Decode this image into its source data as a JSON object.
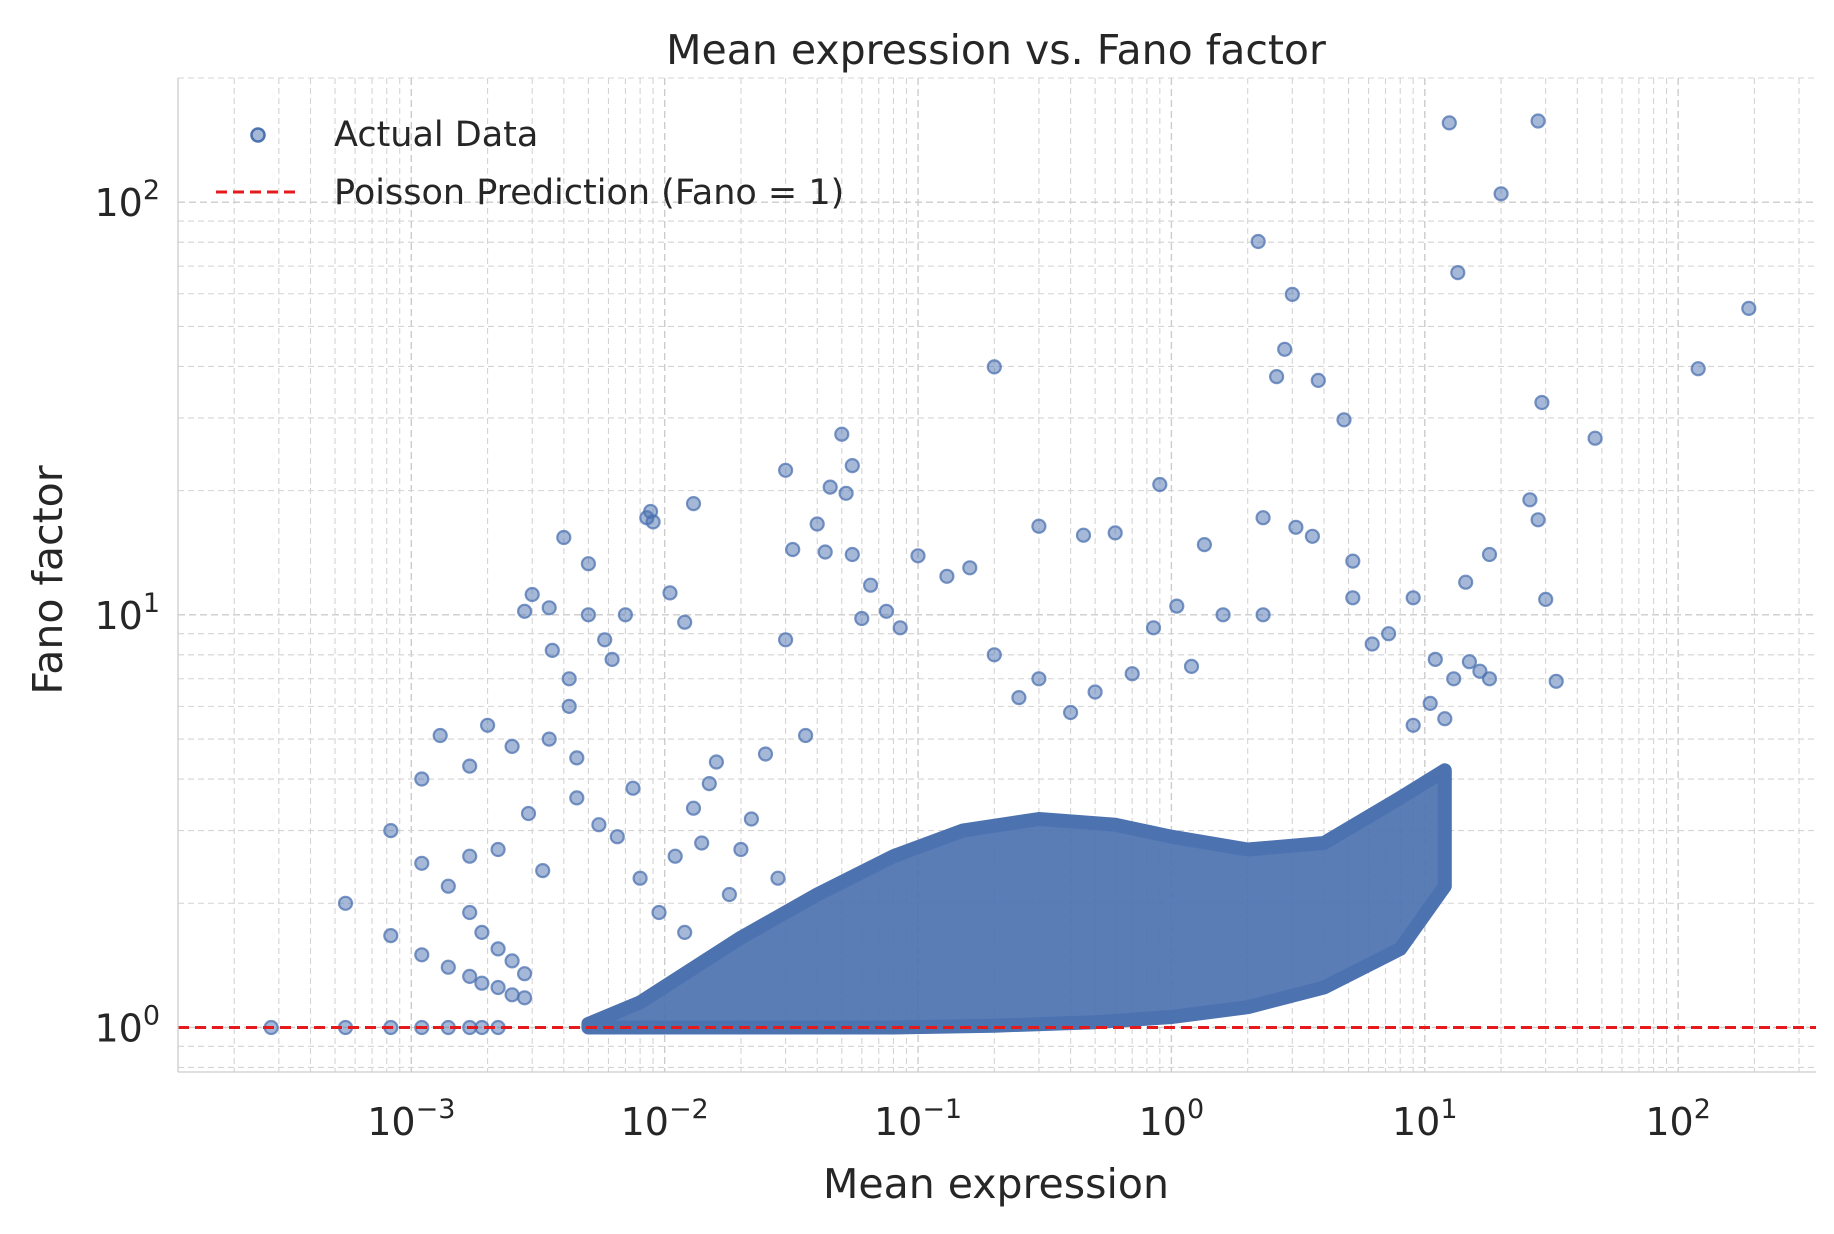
{
  "chart_data": {
    "type": "scatter",
    "title": "Mean expression vs. Fano factor",
    "xlabel": "Mean expression",
    "ylabel": "Fano factor",
    "xscale": "log",
    "yscale": "log",
    "xlim": [
      0.00012,
      350
    ],
    "ylim": [
      0.78,
      200
    ],
    "x_ticks": [
      {
        "base": "10",
        "exp": "−3",
        "value": 0.001
      },
      {
        "base": "10",
        "exp": "−2",
        "value": 0.01
      },
      {
        "base": "10",
        "exp": "−1",
        "value": 0.1
      },
      {
        "base": "10",
        "exp": "0",
        "value": 1
      },
      {
        "base": "10",
        "exp": "1",
        "value": 10
      },
      {
        "base": "10",
        "exp": "2",
        "value": 100
      }
    ],
    "y_ticks": [
      {
        "base": "10",
        "exp": "0",
        "value": 1
      },
      {
        "base": "10",
        "exp": "1",
        "value": 10
      },
      {
        "base": "10",
        "exp": "2",
        "value": 100
      }
    ],
    "grid": true,
    "legend_position": "top-left",
    "series": [
      {
        "name": "Actual Data",
        "kind": "scatter",
        "color": "#4c72b0",
        "alpha": 0.5,
        "points": [
          [
            0.00028,
            1.0
          ],
          [
            0.00055,
            1.0
          ],
          [
            0.00055,
            2.0
          ],
          [
            0.00083,
            1.0
          ],
          [
            0.00083,
            1.67
          ],
          [
            0.00083,
            3.0
          ],
          [
            0.0011,
            1.0
          ],
          [
            0.0011,
            1.5
          ],
          [
            0.0011,
            2.5
          ],
          [
            0.0011,
            4.0
          ],
          [
            0.0014,
            1.0
          ],
          [
            0.0014,
            1.4
          ],
          [
            0.0014,
            2.2
          ],
          [
            0.0017,
            1.0
          ],
          [
            0.0017,
            1.33
          ],
          [
            0.0017,
            1.9
          ],
          [
            0.0017,
            2.6
          ],
          [
            0.0017,
            4.3
          ],
          [
            0.0019,
            1.0
          ],
          [
            0.0019,
            1.28
          ],
          [
            0.0019,
            1.7
          ],
          [
            0.0022,
            1.0
          ],
          [
            0.0022,
            1.25
          ],
          [
            0.0022,
            1.55
          ],
          [
            0.0022,
            2.7
          ],
          [
            0.0025,
            1.2
          ],
          [
            0.0025,
            1.45
          ],
          [
            0.0028,
            1.18
          ],
          [
            0.0028,
            1.35
          ],
          [
            0.0028,
            10.2
          ],
          [
            0.003,
            11.2
          ],
          [
            0.0035,
            10.4
          ],
          [
            0.0036,
            8.2
          ],
          [
            0.004,
            15.4
          ],
          [
            0.0042,
            7.0
          ],
          [
            0.0042,
            6.0
          ],
          [
            0.005,
            13.3
          ],
          [
            0.005,
            10.0
          ],
          [
            0.0058,
            8.7
          ],
          [
            0.0062,
            7.8
          ],
          [
            0.007,
            10.0
          ],
          [
            0.0085,
            17.2
          ],
          [
            0.0088,
            17.8
          ],
          [
            0.009,
            16.8
          ],
          [
            0.0105,
            11.3
          ],
          [
            0.012,
            9.6
          ],
          [
            0.013,
            18.6
          ],
          [
            0.0035,
            5.0
          ],
          [
            0.0045,
            4.5
          ],
          [
            0.0025,
            4.8
          ],
          [
            0.0013,
            5.1
          ],
          [
            0.002,
            5.4
          ],
          [
            0.0029,
            3.3
          ],
          [
            0.0033,
            2.4
          ],
          [
            0.0045,
            3.6
          ],
          [
            0.0055,
            3.1
          ],
          [
            0.0065,
            2.9
          ],
          [
            0.0075,
            3.8
          ],
          [
            0.008,
            2.3
          ],
          [
            0.0095,
            1.9
          ],
          [
            0.011,
            2.6
          ],
          [
            0.012,
            1.7
          ],
          [
            0.013,
            3.4
          ],
          [
            0.014,
            2.8
          ],
          [
            0.015,
            3.9
          ],
          [
            0.016,
            4.4
          ],
          [
            0.018,
            2.1
          ],
          [
            0.02,
            2.7
          ],
          [
            0.022,
            3.2
          ],
          [
            0.025,
            4.6
          ],
          [
            0.028,
            2.3
          ],
          [
            0.03,
            22.4
          ],
          [
            0.032,
            14.4
          ],
          [
            0.03,
            8.7
          ],
          [
            0.036,
            5.1
          ],
          [
            0.04,
            16.6
          ],
          [
            0.043,
            14.2
          ],
          [
            0.045,
            20.4
          ],
          [
            0.05,
            27.4
          ],
          [
            0.052,
            19.7
          ],
          [
            0.055,
            23.0
          ],
          [
            0.055,
            14.0
          ],
          [
            0.06,
            9.8
          ],
          [
            0.065,
            11.8
          ],
          [
            0.075,
            10.2
          ],
          [
            0.085,
            9.3
          ],
          [
            0.1,
            13.9
          ],
          [
            0.13,
            12.4
          ],
          [
            0.16,
            13.0
          ],
          [
            0.2,
            39.9
          ],
          [
            0.3,
            16.4
          ],
          [
            0.45,
            15.6
          ],
          [
            0.6,
            15.8
          ],
          [
            0.9,
            20.7
          ],
          [
            1.35,
            14.8
          ],
          [
            0.2,
            8.0
          ],
          [
            0.25,
            6.3
          ],
          [
            0.3,
            7.0
          ],
          [
            0.4,
            5.8
          ],
          [
            0.5,
            6.5
          ],
          [
            0.7,
            7.2
          ],
          [
            0.85,
            9.3
          ],
          [
            1.05,
            10.5
          ],
          [
            1.2,
            7.5
          ],
          [
            1.6,
            10.0
          ],
          [
            2.2,
            80.3
          ],
          [
            2.6,
            37.8
          ],
          [
            2.8,
            44.0
          ],
          [
            3.0,
            59.8
          ],
          [
            3.1,
            16.3
          ],
          [
            3.6,
            15.5
          ],
          [
            3.8,
            37.0
          ],
          [
            4.8,
            29.7
          ],
          [
            5.2,
            13.5
          ],
          [
            5.2,
            11.0
          ],
          [
            6.2,
            8.5
          ],
          [
            7.2,
            9.0
          ],
          [
            9.0,
            11.0
          ],
          [
            2.3,
            17.2
          ],
          [
            2.3,
            10.0
          ],
          [
            12.5,
            155.7
          ],
          [
            13.5,
            67.5
          ],
          [
            20.0,
            104.8
          ],
          [
            28.0,
            157.3
          ],
          [
            29.0,
            32.7
          ],
          [
            30.0,
            10.9
          ],
          [
            28.0,
            17.0
          ],
          [
            26.0,
            19.0
          ],
          [
            18.0,
            14.0
          ],
          [
            14.5,
            12.0
          ],
          [
            33.0,
            6.9
          ],
          [
            47.0,
            26.8
          ],
          [
            120.0,
            39.5
          ],
          [
            190.0,
            55.3
          ],
          [
            11.0,
            7.8
          ],
          [
            13.0,
            7.0
          ],
          [
            15.0,
            7.7
          ],
          [
            16.5,
            7.3
          ],
          [
            18.0,
            7.0
          ],
          [
            12.0,
            5.6
          ],
          [
            10.5,
            6.1
          ],
          [
            9.0,
            5.4
          ]
        ]
      },
      {
        "name": "Poisson Prediction (Fano = 1)",
        "kind": "hline",
        "y": 1,
        "color": "#e41a1c",
        "linestyle": "dashed"
      }
    ]
  }
}
